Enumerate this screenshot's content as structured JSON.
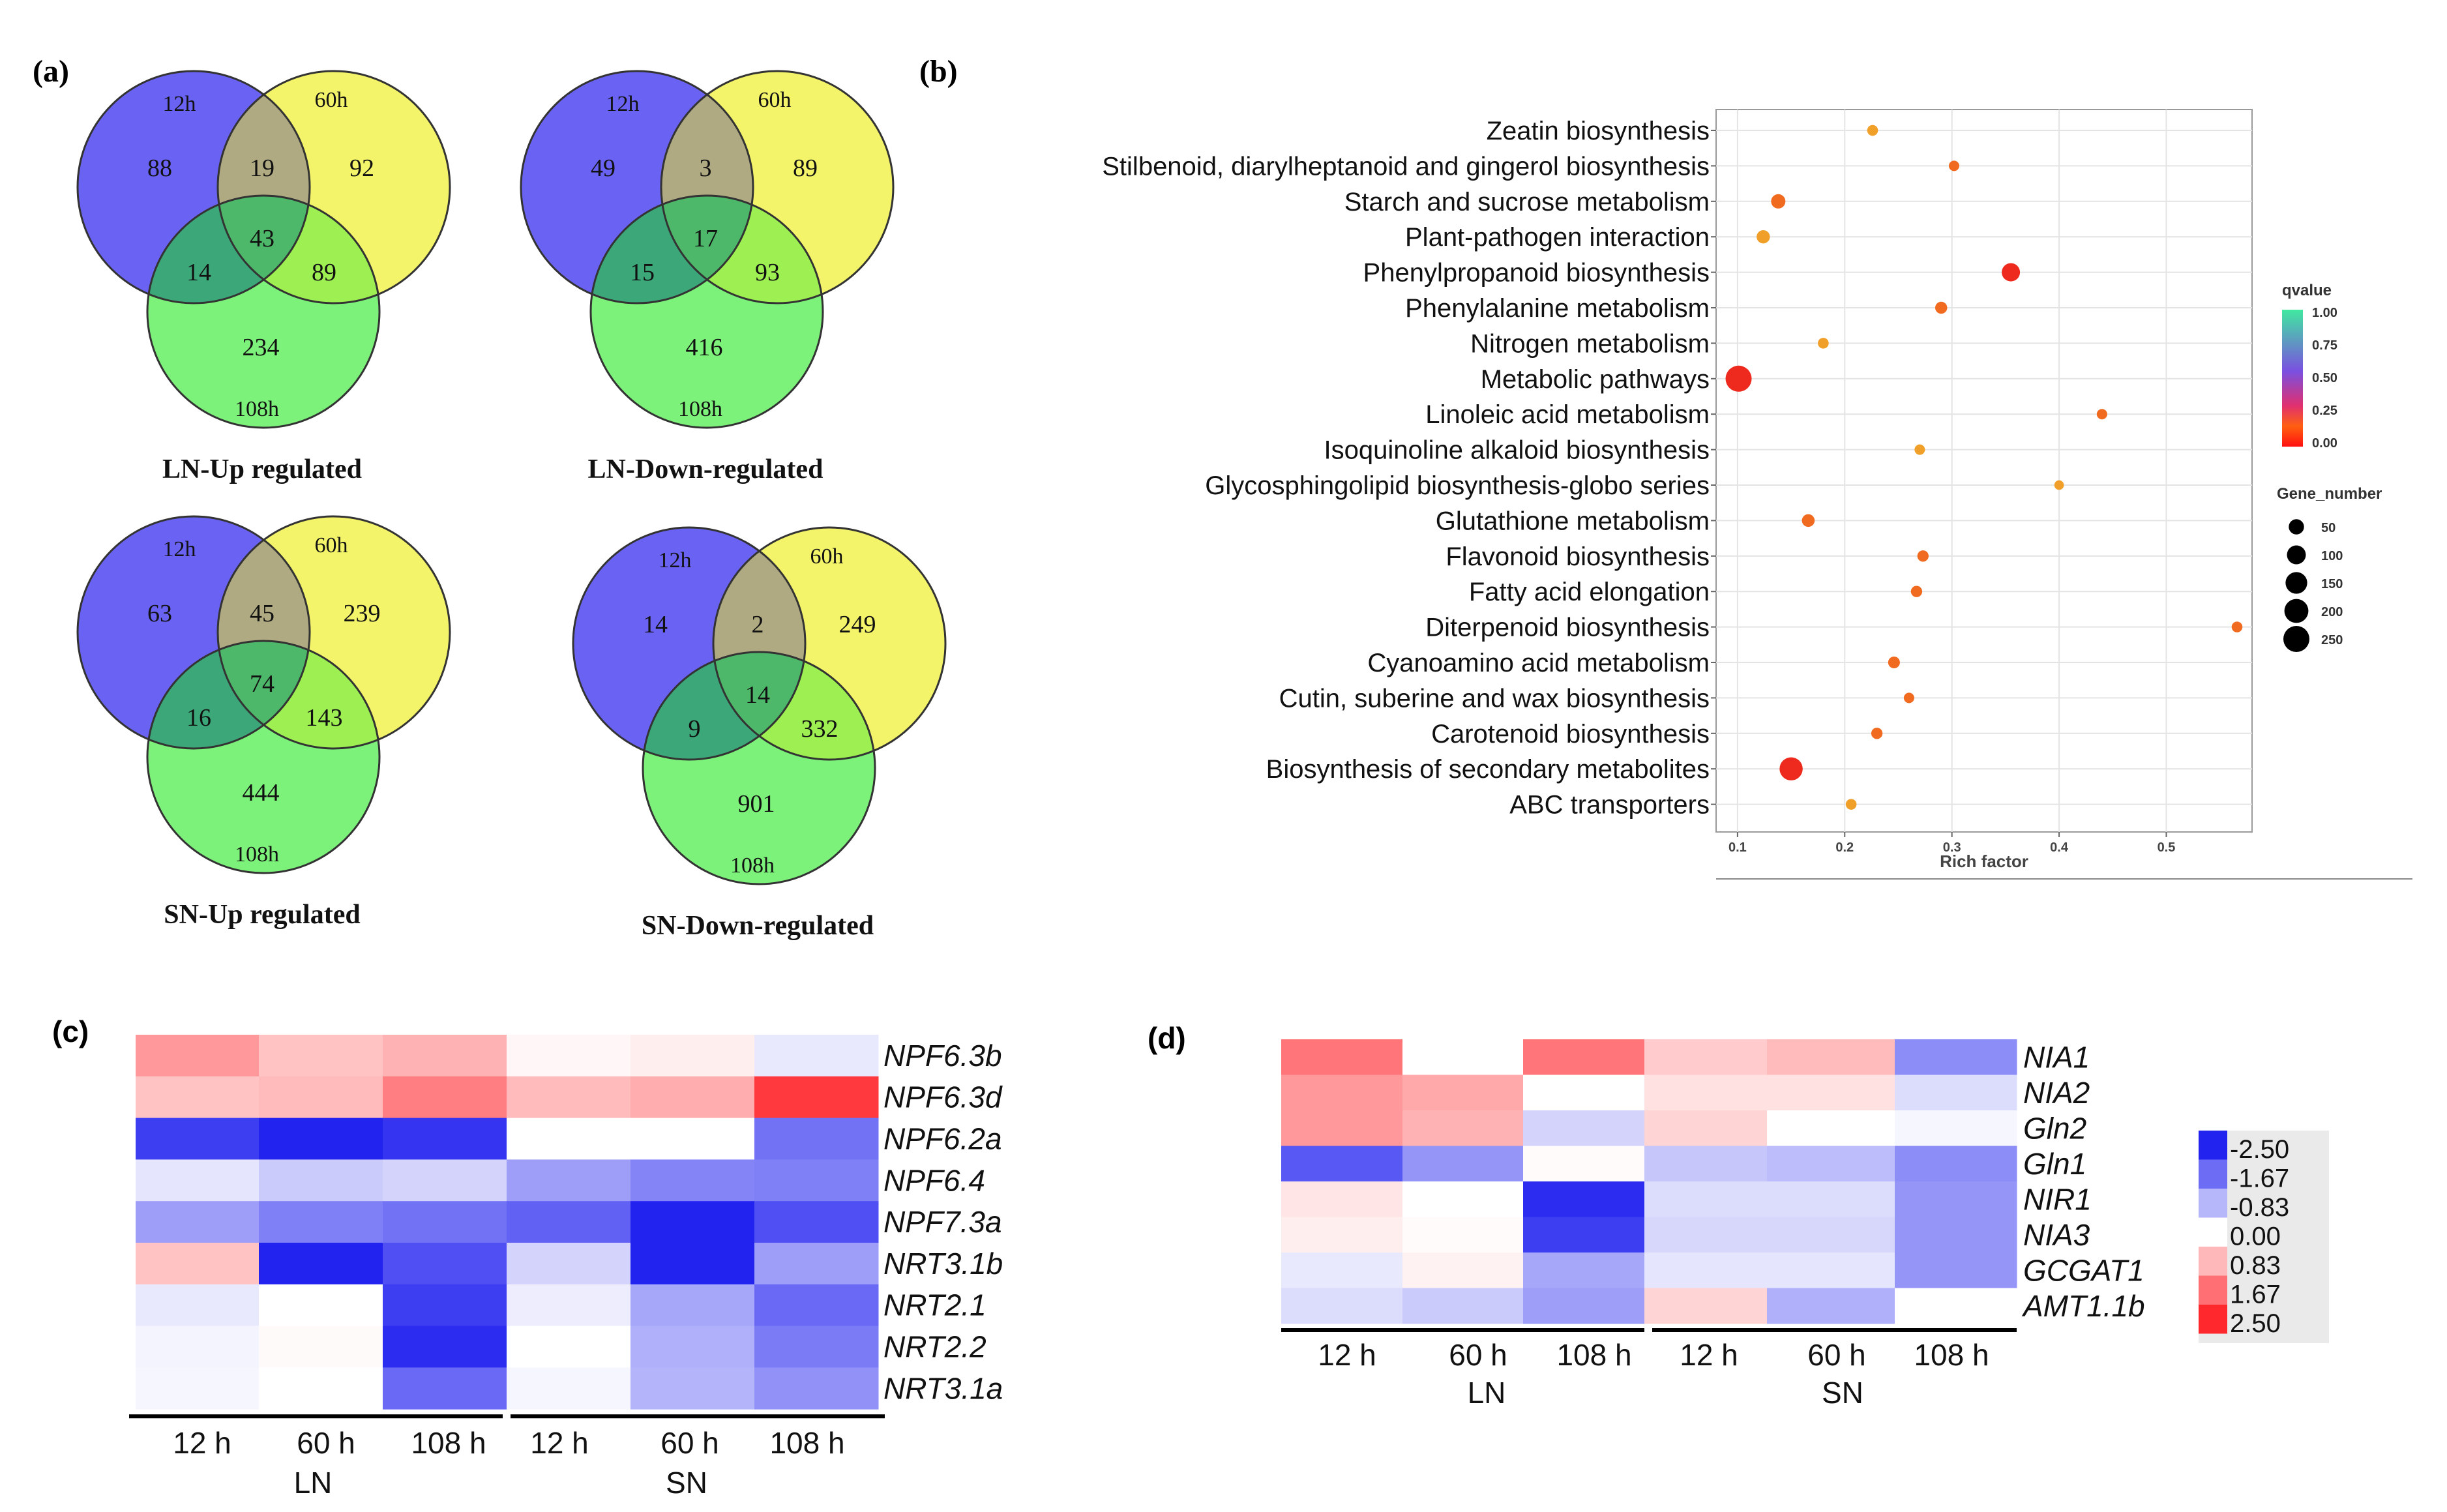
{
  "colors": {
    "venn_a": "#6a62f2",
    "venn_b": "#f4f46a",
    "venn_c": "#7cf27a",
    "ab": "#b0aa82",
    "ac": "#3ca87a",
    "bc": "#9ef052",
    "abc": "#4db86a",
    "dot_strong": "#ee2a1e",
    "dot_mid": "#f06a20",
    "dot_weak": "#f0a028"
  },
  "panel_a": {
    "panel_label": "(a)",
    "venns": [
      {
        "title": "LN-Up regulated",
        "set_a": "12h",
        "set_b": "60h",
        "set_c": "108h",
        "a": "88",
        "b": "92",
        "c": "234",
        "ab": "19",
        "ac": "14",
        "bc": "89",
        "abc": "43"
      },
      {
        "title": "LN-Down-regulated",
        "set_a": "12h",
        "set_b": "60h",
        "set_c": "108h",
        "a": "49",
        "b": "89",
        "c": "416",
        "ab": "3",
        "ac": "15",
        "bc": "93",
        "abc": "17"
      },
      {
        "title": "SN-Up regulated",
        "set_a": "12h",
        "set_b": "60h",
        "set_c": "108h",
        "a": "63",
        "b": "239",
        "c": "444",
        "ab": "45",
        "ac": "16",
        "bc": "143",
        "abc": "74"
      },
      {
        "title": "SN-Down-regulated",
        "set_a": "12h",
        "set_b": "60h",
        "set_c": "108h",
        "a": "14",
        "b": "249",
        "c": "901",
        "ab": "2",
        "ac": "9",
        "bc": "332",
        "abc": "14"
      }
    ]
  },
  "chart_data": [
    {
      "id": "b",
      "panel_label": "(b)",
      "type": "scatter",
      "xlabel": "Rich factor",
      "xlim": [
        0.08,
        0.58
      ],
      "xticks": [
        "0.1",
        "0.2",
        "0.3",
        "0.4",
        "0.5"
      ],
      "xtick_values": [
        0.1,
        0.2,
        0.3,
        0.4,
        0.5
      ],
      "pathways": [
        {
          "name": "Zeatin biosynthesis",
          "rich": 0.226,
          "genes": 12,
          "q": 0.3
        },
        {
          "name": "Stilbenoid, diarylheptanoid and gingerol biosynthesis",
          "rich": 0.302,
          "genes": 10,
          "q": 0.05
        },
        {
          "name": "Starch and sucrose metabolism",
          "rich": 0.138,
          "genes": 40,
          "q": 0.02
        },
        {
          "name": "Plant-pathogen interaction",
          "rich": 0.124,
          "genes": 30,
          "q": 0.25
        },
        {
          "name": "Phenylpropanoid biosynthesis",
          "rich": 0.355,
          "genes": 90,
          "q": 0.0
        },
        {
          "name": "Phenylalanine metabolism",
          "rich": 0.29,
          "genes": 20,
          "q": 0.03
        },
        {
          "name": "Nitrogen metabolism",
          "rich": 0.18,
          "genes": 12,
          "q": 0.3
        },
        {
          "name": "Metabolic pathways",
          "rich": 0.101,
          "genes": 250,
          "q": 0.0
        },
        {
          "name": "Linoleic acid metabolism",
          "rich": 0.44,
          "genes": 10,
          "q": 0.05
        },
        {
          "name": "Isoquinoline alkaloid biosynthesis",
          "rich": 0.27,
          "genes": 10,
          "q": 0.25
        },
        {
          "name": "Glycosphingolipid biosynthesis-globo series",
          "rich": 0.4,
          "genes": 6,
          "q": 0.3
        },
        {
          "name": "Glutathione metabolism",
          "rich": 0.166,
          "genes": 25,
          "q": 0.03
        },
        {
          "name": "Flavonoid biosynthesis",
          "rich": 0.273,
          "genes": 15,
          "q": 0.02
        },
        {
          "name": "Fatty acid elongation",
          "rich": 0.267,
          "genes": 15,
          "q": 0.03
        },
        {
          "name": "Diterpenoid biosynthesis",
          "rich": 0.566,
          "genes": 12,
          "q": 0.02
        },
        {
          "name": "Cyanoamino acid metabolism",
          "rich": 0.246,
          "genes": 18,
          "q": 0.03
        },
        {
          "name": "Cutin, suberine and wax biosynthesis",
          "rich": 0.26,
          "genes": 10,
          "q": 0.1
        },
        {
          "name": "Carotenoid biosynthesis",
          "rich": 0.23,
          "genes": 15,
          "q": 0.05
        },
        {
          "name": "Biosynthesis of secondary metabolites",
          "rich": 0.15,
          "genes": 180,
          "q": 0.0
        },
        {
          "name": "ABC transporters",
          "rich": 0.206,
          "genes": 12,
          "q": 0.3
        }
      ],
      "legend_q_title": "qvalue",
      "legend_q_ticks": [
        "1.00",
        "0.75",
        "0.50",
        "0.25",
        "0.00"
      ],
      "legend_size_title": "Gene_number",
      "legend_size_labels": [
        "50",
        "100",
        "150",
        "200",
        "250"
      ],
      "legend_size_values": [
        50,
        100,
        150,
        200,
        250
      ]
    },
    {
      "id": "c",
      "panel_label": "(c)",
      "type": "heatmap",
      "rows": [
        "NPF6.3b",
        "NPF6.3d",
        "NPF6.2a",
        "NPF6.4",
        "NPF7.3a",
        "NRT3.1b",
        "NRT2.1",
        "NRT2.2",
        "NRT3.1a"
      ],
      "columns": [
        "12 h",
        "60 h",
        "108 h",
        "12 h",
        "60 h",
        "108 h"
      ],
      "groups": [
        "LN",
        "SN"
      ],
      "values": [
        [
          1.2,
          0.7,
          0.9,
          0.1,
          0.2,
          -0.25
        ],
        [
          0.7,
          0.8,
          1.5,
          0.8,
          0.95,
          2.3
        ],
        [
          -2.2,
          -2.5,
          -2.3,
          0.0,
          0.0,
          -1.6
        ],
        [
          -0.3,
          -0.6,
          -0.5,
          -1.1,
          -1.4,
          -1.45
        ],
        [
          -1.1,
          -1.45,
          -1.6,
          -1.8,
          -2.5,
          -2.0
        ],
        [
          0.7,
          -2.5,
          -2.0,
          -0.5,
          -2.5,
          -1.1
        ],
        [
          -0.25,
          0.0,
          -2.2,
          -0.2,
          -1.0,
          -1.7
        ],
        [
          -0.12,
          0.06,
          -2.4,
          0.0,
          -0.9,
          -1.5
        ],
        [
          -0.1,
          0.0,
          -1.7,
          -0.1,
          -0.85,
          -1.25
        ]
      ]
    },
    {
      "id": "d",
      "panel_label": "(d)",
      "type": "heatmap",
      "rows": [
        "NIA1",
        "NIA2",
        "Gln2",
        "Gln1",
        "NIR1",
        "NIA3",
        "GCGAT1",
        "AMT1.1b"
      ],
      "columns": [
        "12 h",
        "60 h",
        "108 h",
        "12 h",
        "60 h",
        "108 h"
      ],
      "groups": [
        "LN",
        "SN"
      ],
      "values": [
        [
          1.6,
          0.0,
          1.6,
          0.6,
          0.8,
          -1.3
        ],
        [
          1.2,
          1.0,
          0.0,
          0.35,
          0.35,
          -0.4
        ],
        [
          1.2,
          0.9,
          -0.5,
          0.5,
          0.0,
          -0.1
        ],
        [
          -1.9,
          -1.2,
          0.05,
          -0.65,
          -0.75,
          -1.3
        ],
        [
          0.3,
          0.0,
          -2.4,
          -0.4,
          -0.4,
          -1.2
        ],
        [
          0.2,
          0.05,
          -2.2,
          -0.45,
          -0.45,
          -1.2
        ],
        [
          -0.25,
          0.15,
          -1.0,
          -0.3,
          -0.3,
          -1.2
        ],
        [
          -0.4,
          -0.6,
          -1.1,
          0.5,
          -0.9,
          0.0
        ]
      ],
      "legend_ticks": [
        "-2.50",
        "-1.67",
        "-0.83",
        "0.00",
        "0.83",
        "1.67",
        "2.50"
      ],
      "legend_values": [
        -2.5,
        -1.67,
        -0.83,
        0.0,
        0.83,
        1.67,
        2.5
      ]
    }
  ]
}
